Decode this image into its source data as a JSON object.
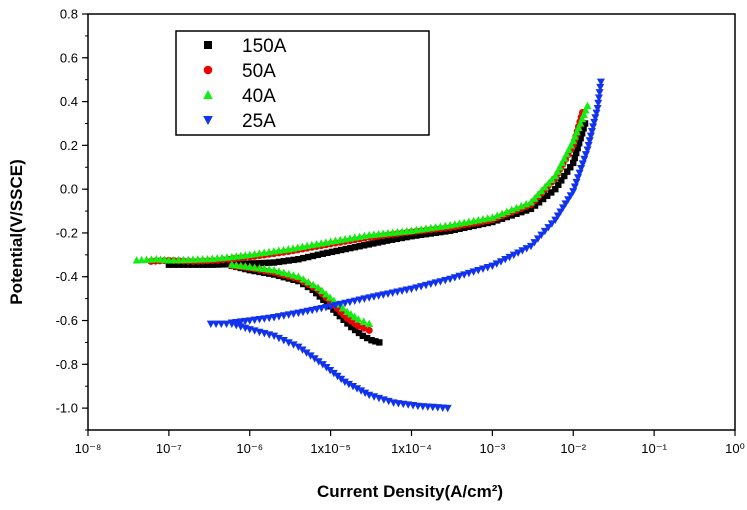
{
  "chart_data": {
    "type": "scatter",
    "xlabel": "Current Density(A/cm²)",
    "ylabel": "Potential(V/SSCE)",
    "xscale": "log",
    "xlim": [
      1e-08,
      1
    ],
    "ylim": [
      -1.1,
      0.8
    ],
    "x_tick_labels": [
      "10⁻⁸",
      "10⁻⁷",
      "10⁻⁶",
      "1x10⁻⁵",
      "1x10⁻⁴",
      "10⁻³",
      "10⁻²",
      "10⁻¹",
      "10⁰"
    ],
    "y_tick_labels": [
      "0.8",
      "0.6",
      "0.4",
      "0.2",
      "0.0",
      "-0.2",
      "-0.4",
      "-0.6",
      "-0.8",
      "-1.0"
    ],
    "y_ticks": [
      0.8,
      0.6,
      0.4,
      0.2,
      0.0,
      -0.2,
      -0.4,
      -0.6,
      -0.8,
      -1.0
    ],
    "grid": false,
    "legend_position": "top-left",
    "series": [
      {
        "name": "150A",
        "color": "#000000",
        "marker": "square",
        "anodic": [
          [
            1e-07,
            -0.345
          ],
          [
            3.5e-07,
            -0.345
          ],
          [
            1e-06,
            -0.34
          ],
          [
            2e-06,
            -0.335
          ],
          [
            4e-06,
            -0.32
          ],
          [
            8e-06,
            -0.295
          ],
          [
            2e-05,
            -0.265
          ],
          [
            5e-05,
            -0.235
          ],
          [
            0.0001,
            -0.215
          ],
          [
            0.0003,
            -0.19
          ],
          [
            0.001,
            -0.15
          ],
          [
            0.003,
            -0.09
          ],
          [
            0.006,
            0.0
          ],
          [
            0.01,
            0.12
          ],
          [
            0.014,
            0.3
          ]
        ],
        "cathodic": [
          [
            6e-07,
            -0.35
          ],
          [
            1e-06,
            -0.37
          ],
          [
            2e-06,
            -0.39
          ],
          [
            4e-06,
            -0.42
          ],
          [
            6e-06,
            -0.46
          ],
          [
            9e-06,
            -0.52
          ],
          [
            1.3e-05,
            -0.58
          ],
          [
            1.8e-05,
            -0.63
          ],
          [
            2.5e-05,
            -0.67
          ],
          [
            3.2e-05,
            -0.69
          ],
          [
            4e-05,
            -0.7
          ]
        ]
      },
      {
        "name": "50A",
        "color": "#ee0000",
        "marker": "circle",
        "anodic": [
          [
            6e-08,
            -0.33
          ],
          [
            1e-07,
            -0.325
          ],
          [
            2e-07,
            -0.33
          ],
          [
            4e-07,
            -0.325
          ],
          [
            1e-06,
            -0.31
          ],
          [
            3e-06,
            -0.285
          ],
          [
            1e-05,
            -0.25
          ],
          [
            3e-05,
            -0.22
          ],
          [
            0.0001,
            -0.195
          ],
          [
            0.0003,
            -0.175
          ],
          [
            0.001,
            -0.14
          ],
          [
            0.003,
            -0.07
          ],
          [
            0.006,
            0.05
          ],
          [
            0.01,
            0.2
          ],
          [
            0.013,
            0.35
          ]
        ],
        "cathodic": [
          [
            6e-07,
            -0.35
          ],
          [
            1e-06,
            -0.36
          ],
          [
            2e-06,
            -0.38
          ],
          [
            4e-06,
            -0.41
          ],
          [
            7e-06,
            -0.46
          ],
          [
            1.1e-05,
            -0.53
          ],
          [
            1.6e-05,
            -0.59
          ],
          [
            2.2e-05,
            -0.625
          ],
          [
            3e-05,
            -0.645
          ]
        ]
      },
      {
        "name": "40A",
        "color": "#11ee11",
        "marker": "triangle-up",
        "anodic": [
          [
            4e-08,
            -0.325
          ],
          [
            7e-08,
            -0.32
          ],
          [
            1e-07,
            -0.325
          ],
          [
            3e-07,
            -0.32
          ],
          [
            6e-07,
            -0.31
          ],
          [
            1e-06,
            -0.3
          ],
          [
            3e-06,
            -0.275
          ],
          [
            1e-05,
            -0.24
          ],
          [
            3e-05,
            -0.21
          ],
          [
            0.0001,
            -0.19
          ],
          [
            0.0003,
            -0.165
          ],
          [
            0.001,
            -0.13
          ],
          [
            0.003,
            -0.06
          ],
          [
            0.006,
            0.06
          ],
          [
            0.01,
            0.22
          ],
          [
            0.015,
            0.38
          ]
        ],
        "cathodic": [
          [
            6e-07,
            -0.345
          ],
          [
            1e-06,
            -0.355
          ],
          [
            2e-06,
            -0.37
          ],
          [
            4e-06,
            -0.4
          ],
          [
            7e-06,
            -0.45
          ],
          [
            1.1e-05,
            -0.51
          ],
          [
            1.6e-05,
            -0.56
          ],
          [
            2.2e-05,
            -0.595
          ],
          [
            3e-05,
            -0.615
          ]
        ]
      },
      {
        "name": "25A",
        "color": "#1133ee",
        "marker": "triangle-down",
        "anodic": [
          [
            6e-07,
            -0.61
          ],
          [
            1e-06,
            -0.6
          ],
          [
            2e-06,
            -0.585
          ],
          [
            4e-06,
            -0.565
          ],
          [
            1e-05,
            -0.535
          ],
          [
            3e-05,
            -0.495
          ],
          [
            0.0001,
            -0.455
          ],
          [
            0.0003,
            -0.41
          ],
          [
            0.001,
            -0.35
          ],
          [
            0.003,
            -0.26
          ],
          [
            0.006,
            -0.14
          ],
          [
            0.01,
            -0.01
          ],
          [
            0.015,
            0.18
          ],
          [
            0.02,
            0.37
          ],
          [
            0.022,
            0.49
          ]
        ],
        "cathodic": [
          [
            3.3e-07,
            -0.615
          ],
          [
            6e-07,
            -0.615
          ],
          [
            1e-06,
            -0.64
          ],
          [
            2e-06,
            -0.67
          ],
          [
            4e-06,
            -0.72
          ],
          [
            8e-06,
            -0.8
          ],
          [
            1.5e-05,
            -0.88
          ],
          [
            3e-05,
            -0.94
          ],
          [
            6e-05,
            -0.975
          ],
          [
            0.00012,
            -0.99
          ],
          [
            0.00028,
            -1.0
          ]
        ]
      }
    ]
  }
}
